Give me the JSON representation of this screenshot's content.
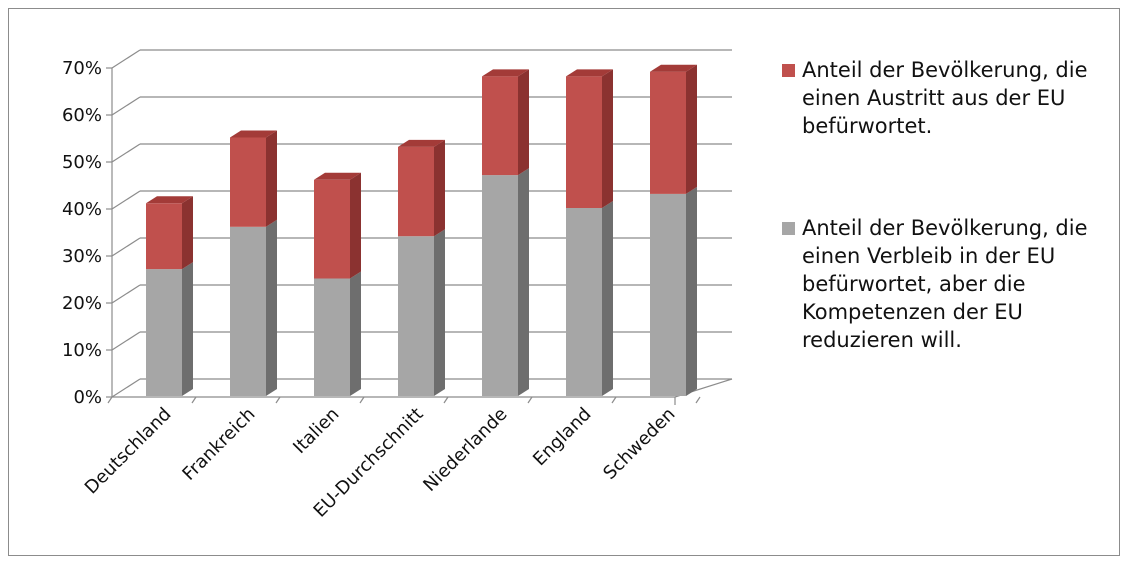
{
  "chart_data": {
    "type": "bar",
    "stacked": true,
    "three_d": true,
    "categories": [
      "Deutschland",
      "Frankreich",
      "Italien",
      "EU-Durchschnitt",
      "Niederlande",
      "England",
      "Schweden"
    ],
    "series": [
      {
        "name": "Anteil der Bevölkerung, die einen Verbleib in der EU befürwortet, aber die Kompetenzen der EU reduzieren will.",
        "color": "#a6a6a6",
        "side_color": "#6e6e6e",
        "top_color": "#c8c8c8",
        "values": [
          27,
          36,
          25,
          34,
          47,
          40,
          43
        ]
      },
      {
        "name": "Anteil der Bevölkerung, die einen Austritt aus der EU befürwortet.",
        "color": "#c0504d",
        "side_color": "#8b3230",
        "top_color": "#a33b38",
        "values": [
          14,
          19,
          21,
          19,
          21,
          28,
          26
        ]
      }
    ],
    "y_ticks": [
      "0%",
      "10%",
      "20%",
      "30%",
      "40%",
      "50%",
      "60%",
      "70%"
    ],
    "ylim": [
      0,
      70
    ],
    "grid": true,
    "legend_position": "right",
    "legend_order": [
      1,
      0
    ]
  }
}
